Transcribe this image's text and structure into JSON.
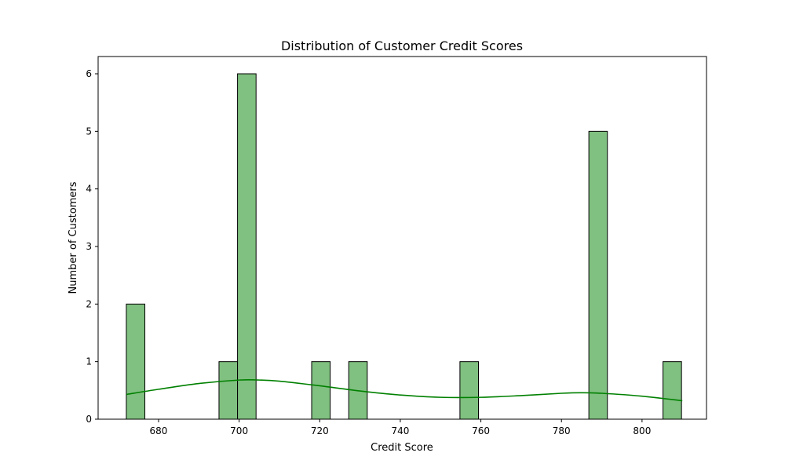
{
  "chart_data": {
    "type": "bar",
    "title": "Distribution of Customer Credit Scores",
    "xlabel": "Credit Score",
    "ylabel": "Number of Customers",
    "xlim": [
      665,
      816
    ],
    "ylim": [
      0,
      6.3
    ],
    "xticks": [
      680,
      700,
      720,
      740,
      760,
      780,
      800
    ],
    "yticks": [
      0,
      1,
      2,
      3,
      4,
      5,
      6
    ],
    "bins": [
      {
        "x0": 672.0,
        "x1": 676.6,
        "count": 2
      },
      {
        "x0": 695.0,
        "x1": 699.6,
        "count": 1
      },
      {
        "x0": 699.6,
        "x1": 704.2,
        "count": 6
      },
      {
        "x0": 718.0,
        "x1": 722.6,
        "count": 1
      },
      {
        "x0": 727.2,
        "x1": 731.8,
        "count": 1
      },
      {
        "x0": 754.8,
        "x1": 759.4,
        "count": 1
      },
      {
        "x0": 786.8,
        "x1": 791.4,
        "count": 5
      },
      {
        "x0": 805.2,
        "x1": 809.8,
        "count": 1
      }
    ],
    "kde": {
      "x": [
        672,
        680,
        690,
        700,
        705,
        710,
        720,
        730,
        740,
        750,
        760,
        770,
        780,
        785,
        790,
        800,
        810
      ],
      "y": [
        0.43,
        0.52,
        0.62,
        0.68,
        0.68,
        0.66,
        0.58,
        0.49,
        0.42,
        0.38,
        0.38,
        0.41,
        0.45,
        0.46,
        0.45,
        0.4,
        0.32
      ]
    },
    "grid": false,
    "colors": {
      "bar_fill": "#80c080",
      "bar_edge": "#000000",
      "kde_line": "#008000"
    }
  }
}
